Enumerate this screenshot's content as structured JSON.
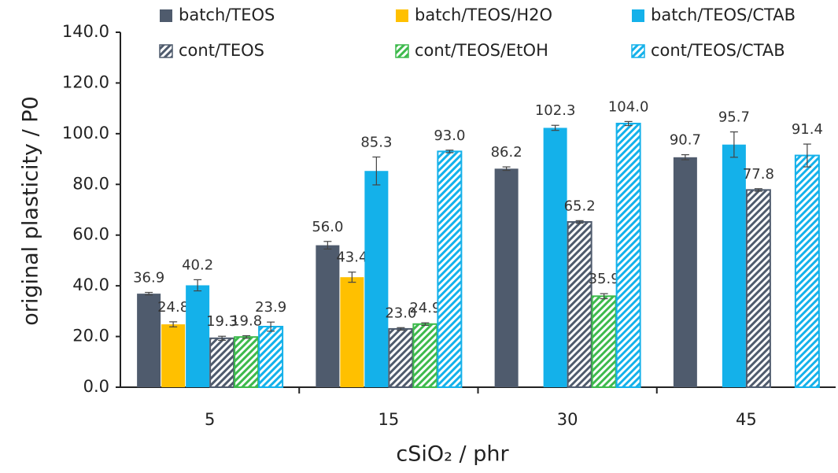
{
  "chart_data": {
    "type": "bar",
    "x_label": "cSiO₂ / phr",
    "y_label": "original plasticity / P0",
    "categories": [
      "5",
      "15",
      "30",
      "45"
    ],
    "ylim": [
      0,
      140
    ],
    "yticks": [
      {
        "value": 0,
        "label": "0.0"
      },
      {
        "value": 20,
        "label": "20.0"
      },
      {
        "value": 40,
        "label": "40.0"
      },
      {
        "value": 60,
        "label": "60.0"
      },
      {
        "value": 80,
        "label": "80.0"
      },
      {
        "value": 100,
        "label": "100.0"
      },
      {
        "value": 120,
        "label": "120.0"
      },
      {
        "value": 140,
        "label": "140.0"
      }
    ],
    "grid": false,
    "legend": "top",
    "series": [
      {
        "name": "batch/TEOS",
        "color": "#4f5b6d",
        "hatch": false,
        "values": [
          36.9,
          56.0,
          86.2,
          90.7
        ],
        "value_labels": [
          "36.9",
          "56.0",
          "86.2",
          "90.7"
        ],
        "errors": [
          0.5,
          1.5,
          0.7,
          1.0
        ]
      },
      {
        "name": "batch/TEOS/H2O",
        "color": "#ffc000",
        "hatch": false,
        "values": [
          24.8,
          43.4,
          null,
          null
        ],
        "value_labels": [
          "24.8",
          "43.4",
          null,
          null
        ],
        "errors": [
          1.0,
          2.0,
          null,
          null
        ]
      },
      {
        "name": "batch/TEOS/CTAB",
        "color": "#14b1ea",
        "hatch": false,
        "values": [
          40.2,
          85.3,
          102.3,
          95.7
        ],
        "value_labels": [
          "40.2",
          "85.3",
          "102.3",
          "95.7"
        ],
        "errors": [
          2.2,
          5.5,
          1.0,
          5.0
        ]
      },
      {
        "name": "cont/TEOS",
        "color": "#4f5b6d",
        "hatch": true,
        "values": [
          19.3,
          23.0,
          65.2,
          77.8
        ],
        "value_labels": [
          "19.3",
          "23.0",
          "65.2",
          "77.8"
        ],
        "errors": [
          0.8,
          0.5,
          0.5,
          0.5
        ]
      },
      {
        "name": "cont/TEOS/EtOH",
        "color": "#3dba4c",
        "hatch": true,
        "values": [
          19.8,
          24.9,
          35.9,
          null
        ],
        "value_labels": [
          "19.8",
          "24.9",
          "35.9",
          null
        ],
        "errors": [
          0.5,
          0.5,
          1.0,
          null
        ]
      },
      {
        "name": "cont/TEOS/CTAB",
        "color": "#14b1ea",
        "hatch": true,
        "values": [
          23.9,
          93.0,
          104.0,
          91.4
        ],
        "value_labels": [
          "23.9",
          "93.0",
          "104.0",
          "91.4"
        ],
        "errors": [
          1.8,
          0.5,
          0.8,
          4.5
        ]
      }
    ]
  }
}
